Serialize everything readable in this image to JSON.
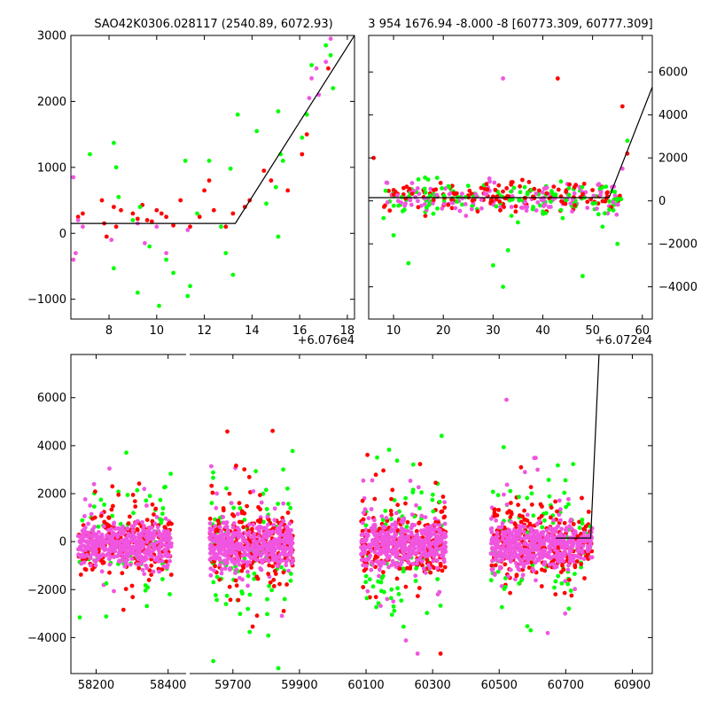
{
  "colors": {
    "red": "#ff0000",
    "green": "#00ff00",
    "magenta": "#f055e0"
  },
  "chart_data": [
    {
      "type": "scatter",
      "title": "SAO42K0306.028117 (2540.89, 6072.93)",
      "xlabel": "",
      "ylabel": "",
      "xlim": [
        6.4,
        18.3
      ],
      "ylim": [
        -1300,
        3000
      ],
      "x_offset_label": "+6.076e4",
      "xticks": [
        8,
        10,
        12,
        14,
        16,
        18
      ],
      "yticks": [
        -1000,
        0,
        1000,
        2000,
        3000
      ],
      "ytick_side": "left",
      "fit_line": {
        "x": [
          6.4,
          13.3,
          18.3
        ],
        "y": [
          150,
          150,
          3000
        ]
      },
      "series": [
        {
          "name": "red",
          "color": "red",
          "points": [
            [
              6.7,
              250
            ],
            [
              6.9,
              300
            ],
            [
              7.7,
              500
            ],
            [
              7.8,
              150
            ],
            [
              7.9,
              -50
            ],
            [
              8.2,
              400
            ],
            [
              8.3,
              100
            ],
            [
              8.5,
              350
            ],
            [
              9.0,
              300
            ],
            [
              9.2,
              220
            ],
            [
              9.4,
              430
            ],
            [
              9.6,
              200
            ],
            [
              9.8,
              180
            ],
            [
              10.0,
              350
            ],
            [
              10.2,
              300
            ],
            [
              10.4,
              250
            ],
            [
              10.7,
              120
            ],
            [
              11.0,
              500
            ],
            [
              11.4,
              100
            ],
            [
              11.8,
              250
            ],
            [
              12.0,
              650
            ],
            [
              12.2,
              800
            ],
            [
              12.4,
              350
            ],
            [
              12.9,
              100
            ],
            [
              13.2,
              300
            ],
            [
              13.7,
              400
            ],
            [
              13.9,
              500
            ],
            [
              14.5,
              950
            ],
            [
              14.8,
              800
            ],
            [
              15.5,
              650
            ],
            [
              16.1,
              1200
            ],
            [
              16.3,
              1500
            ],
            [
              17.2,
              2500
            ]
          ]
        },
        {
          "name": "green",
          "color": "green",
          "points": [
            [
              7.2,
              1200
            ],
            [
              8.2,
              1370
            ],
            [
              8.3,
              1000
            ],
            [
              8.4,
              550
            ],
            [
              8.2,
              -530
            ],
            [
              9.0,
              200
            ],
            [
              9.2,
              -900
            ],
            [
              9.3,
              400
            ],
            [
              9.7,
              -200
            ],
            [
              10.1,
              -1100
            ],
            [
              10.4,
              -400
            ],
            [
              10.7,
              -600
            ],
            [
              11.2,
              1100
            ],
            [
              11.3,
              -950
            ],
            [
              11.4,
              -800
            ],
            [
              11.7,
              300
            ],
            [
              12.2,
              1100
            ],
            [
              12.7,
              100
            ],
            [
              12.9,
              -300
            ],
            [
              13.1,
              980
            ],
            [
              13.2,
              -630
            ],
            [
              13.4,
              1800
            ],
            [
              14.2,
              1550
            ],
            [
              14.6,
              450
            ],
            [
              15.0,
              700
            ],
            [
              15.1,
              1850
            ],
            [
              15.1,
              -50
            ],
            [
              15.2,
              1200
            ],
            [
              15.3,
              1100
            ],
            [
              16.1,
              1450
            ],
            [
              16.3,
              1800
            ],
            [
              16.5,
              2550
            ],
            [
              17.1,
              2850
            ],
            [
              17.3,
              2700
            ],
            [
              17.4,
              2200
            ]
          ]
        },
        {
          "name": "magenta",
          "color": "magenta",
          "points": [
            [
              6.5,
              850
            ],
            [
              6.5,
              -400
            ],
            [
              6.6,
              -300
            ],
            [
              6.7,
              200
            ],
            [
              6.9,
              100
            ],
            [
              8.1,
              -100
            ],
            [
              9.2,
              150
            ],
            [
              9.5,
              -150
            ],
            [
              10.0,
              100
            ],
            [
              10.4,
              -300
            ],
            [
              11.3,
              50
            ],
            [
              16.4,
              2050
            ],
            [
              16.5,
              2350
            ],
            [
              16.7,
              2500
            ],
            [
              16.8,
              2100
            ],
            [
              17.1,
              2600
            ],
            [
              17.3,
              2950
            ]
          ]
        }
      ]
    },
    {
      "type": "scatter",
      "title": "3 954 1676.94 -8.000 -8 [60773.309, 60777.309]",
      "xlabel": "",
      "ylabel": "",
      "xlim": [
        5,
        62
      ],
      "ylim": [
        -5500,
        7700
      ],
      "x_offset_label": "+6.072e4",
      "xticks": [
        10,
        20,
        30,
        40,
        50,
        60
      ],
      "yticks": [
        -4000,
        -2000,
        0,
        2000,
        4000,
        6000
      ],
      "ytick_side": "right",
      "fit_line": {
        "x": [
          5,
          53.3,
          62
        ],
        "y": [
          150,
          150,
          5300
        ]
      },
      "series": [
        {
          "name": "red",
          "color": "red",
          "points": [
            [
              6,
              2000
            ],
            [
              10,
              500
            ],
            [
              12,
              300
            ],
            [
              16,
              500
            ],
            [
              20,
              300
            ],
            [
              25,
              250
            ],
            [
              30,
              200
            ],
            [
              33,
              100
            ],
            [
              37,
              400
            ],
            [
              43,
              5700
            ],
            [
              48,
              200
            ],
            [
              50,
              500
            ],
            [
              53,
              400
            ],
            [
              56,
              4400
            ],
            [
              57,
              2200
            ]
          ]
        },
        {
          "name": "green",
          "color": "green",
          "points": [
            [
              8,
              -800
            ],
            [
              10,
              -1600
            ],
            [
              13,
              -2900
            ],
            [
              15,
              1000
            ],
            [
              18,
              -600
            ],
            [
              25,
              700
            ],
            [
              30,
              -3000
            ],
            [
              32,
              -4000
            ],
            [
              33,
              -2300
            ],
            [
              35,
              -1000
            ],
            [
              38,
              200
            ],
            [
              40,
              -500
            ],
            [
              44,
              -800
            ],
            [
              48,
              -3500
            ],
            [
              52,
              -1200
            ],
            [
              55,
              -2000
            ],
            [
              57,
              2800
            ]
          ]
        },
        {
          "name": "magenta",
          "color": "magenta",
          "points": [
            [
              18,
              0
            ],
            [
              26,
              -200
            ],
            [
              32,
              5700
            ],
            [
              33,
              200
            ],
            [
              40,
              -600
            ],
            [
              45,
              300
            ],
            [
              50,
              -100
            ],
            [
              56,
              1500
            ]
          ]
        }
      ]
    },
    {
      "type": "scatter",
      "title": "",
      "xlabel": "",
      "ylabel": "",
      "ylim": [
        -5500,
        7800
      ],
      "yticks": [
        -4000,
        -2000,
        0,
        2000,
        4000,
        6000
      ],
      "ytick_side": "left",
      "broken_axis": [
        {
          "xlim": [
            58130,
            58450
          ],
          "xticks": [
            58200,
            58400
          ]
        },
        {
          "xlim": [
            59570,
            60960
          ],
          "xticks": [
            59700,
            59900,
            60100,
            60300,
            60500,
            60700,
            60900
          ]
        }
      ],
      "fit_line": {
        "x": [
          60670,
          60775,
          60800
        ],
        "y": [
          150,
          150,
          7800
        ]
      },
      "clusters": [
        {
          "x_range": [
            58150,
            58410
          ],
          "core_spread": 600,
          "outer_spread": 2700,
          "n_core": 420,
          "n_outer": 130
        },
        {
          "x_range": [
            59630,
            59880
          ],
          "core_spread": 650,
          "outer_spread": 3200,
          "n_core": 420,
          "n_outer": 170
        },
        {
          "x_range": [
            60085,
            60340
          ],
          "core_spread": 650,
          "outer_spread": 3200,
          "n_core": 420,
          "n_outer": 170
        },
        {
          "x_range": [
            60475,
            60730
          ],
          "core_spread": 650,
          "outer_spread": 3000,
          "n_core": 420,
          "n_outer": 160
        },
        {
          "x_range": [
            60734,
            60780
          ],
          "core_spread": 500,
          "outer_spread": 1800,
          "n_core": 60,
          "n_outer": 25
        }
      ]
    }
  ]
}
